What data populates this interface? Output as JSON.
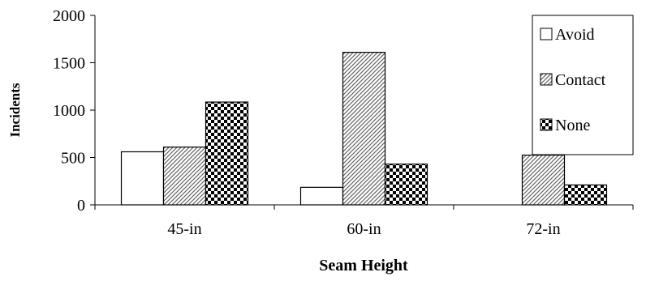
{
  "chart_data": {
    "type": "bar",
    "title": "",
    "xlabel": "Seam Height",
    "ylabel": "Incidents",
    "categories": [
      "45-in",
      "60-in",
      "72-in"
    ],
    "ylim": [
      0,
      2000
    ],
    "yticks": [
      0,
      500,
      1000,
      1500,
      2000
    ],
    "grid": false,
    "legend_position": "top-right",
    "series": [
      {
        "name": "Avoid",
        "values": [
          560,
          185,
          0
        ],
        "pattern": "none"
      },
      {
        "name": "Contact",
        "values": [
          610,
          1610,
          525
        ],
        "pattern": "diagonal-hatch"
      },
      {
        "name": "None",
        "values": [
          1085,
          430,
          210
        ],
        "pattern": "checkerboard"
      }
    ]
  }
}
